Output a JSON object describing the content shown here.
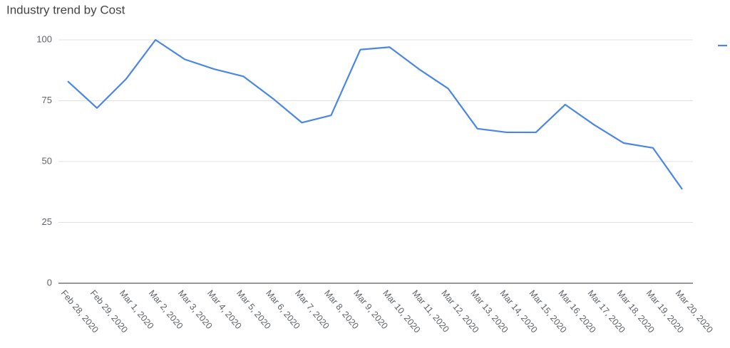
{
  "chart_data": {
    "type": "line",
    "title": "Industry trend by Cost",
    "categories": [
      "Feb 28, 2020",
      "Feb 29, 2020",
      "Mar 1, 2020",
      "Mar 2, 2020",
      "Mar 3, 2020",
      "Mar 4, 2020",
      "Mar 5, 2020",
      "Mar 6, 2020",
      "Mar 7, 2020",
      "Mar 8, 2020",
      "Mar 9, 2020",
      "Mar 10, 2020",
      "Mar 11, 2020",
      "Mar 12, 2020",
      "Mar 13, 2020",
      "Mar 14, 2020",
      "Mar 15, 2020",
      "Mar 16, 2020",
      "Mar 17, 2020",
      "Mar 18, 2020",
      "Mar 19, 2020",
      "Mar 20, 2020"
    ],
    "series": [
      {
        "color": "#4a86e8",
        "values": [
          83,
          72,
          84,
          100,
          92,
          88,
          85,
          76,
          66,
          69,
          96,
          97,
          88,
          80,
          63.5,
          62,
          62,
          73.4,
          65,
          57.6,
          55.6,
          38.6
        ]
      }
    ],
    "ylim": [
      0,
      100
    ],
    "yticks": [
      0,
      25,
      50,
      75,
      100
    ],
    "grid": true,
    "legend": "right"
  }
}
